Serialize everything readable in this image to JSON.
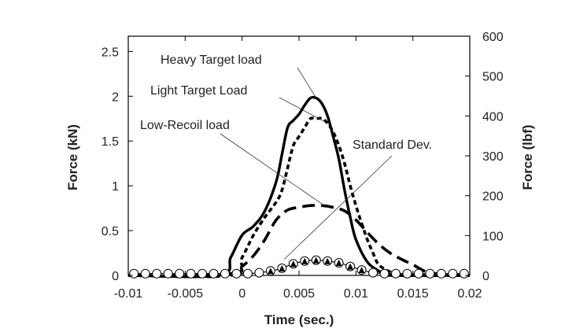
{
  "chart_data": {
    "type": "line",
    "xlabel": "Time (sec.)",
    "ylabel": "Force (kN)",
    "ylabel_right": "Force (lbf)",
    "xlim": [
      -0.01,
      0.02
    ],
    "ylim": [
      0,
      2.67
    ],
    "ylim_right": [
      0,
      600
    ],
    "x_ticks": [
      "-0.01",
      "-0.005",
      "0",
      "0.005",
      "0.01",
      "0.015",
      "0.02"
    ],
    "y_ticks": [
      "0",
      "0.5",
      "1",
      "1.5",
      "2",
      "2.5"
    ],
    "y_ticks_right": [
      "0",
      "100",
      "200",
      "300",
      "400",
      "500",
      "600"
    ],
    "grid": false,
    "annotations": [
      {
        "text": "Heavy Target load",
        "target_series": "heavy",
        "x": 0.0066,
        "y": 1.96
      },
      {
        "text": "Light Target Load",
        "target_series": "light",
        "x": 0.0072,
        "y": 1.72
      },
      {
        "text": "Low-Recoil load",
        "target_series": "low",
        "x": 0.0071,
        "y": 0.79
      },
      {
        "text": "Standard Dev.",
        "target_series": "std",
        "x": 0.0037,
        "y": 0.18
      }
    ],
    "series": [
      {
        "key": "heavy",
        "style": "solid",
        "color": "#000000",
        "x": [
          -0.01,
          -0.002,
          -0.001,
          0.0,
          0.001,
          0.002,
          0.003,
          0.0035,
          0.004,
          0.0045,
          0.005,
          0.0055,
          0.006,
          0.0065,
          0.007,
          0.0075,
          0.008,
          0.0085,
          0.009,
          0.0095,
          0.01,
          0.011,
          0.012,
          0.0125,
          0.013,
          0.02
        ],
        "y": [
          0,
          0,
          0.2,
          0.45,
          0.55,
          0.72,
          1.05,
          1.35,
          1.65,
          1.73,
          1.8,
          1.9,
          1.98,
          1.98,
          1.92,
          1.78,
          1.55,
          1.3,
          0.95,
          0.65,
          0.4,
          0.15,
          0.05,
          0.02,
          0,
          0
        ]
      },
      {
        "key": "light",
        "style": "dotted",
        "color": "#000000",
        "x": [
          -0.01,
          -0.001,
          0.0,
          0.001,
          0.002,
          0.003,
          0.0035,
          0.004,
          0.0045,
          0.005,
          0.0055,
          0.006,
          0.0065,
          0.007,
          0.0075,
          0.008,
          0.0085,
          0.009,
          0.0095,
          0.01,
          0.0105,
          0.011,
          0.0115,
          0.012,
          0.013,
          0.014,
          0.02
        ],
        "y": [
          0,
          0,
          0.2,
          0.45,
          0.65,
          0.82,
          0.95,
          1.2,
          1.45,
          1.55,
          1.65,
          1.75,
          1.75,
          1.75,
          1.7,
          1.6,
          1.45,
          1.25,
          1.0,
          0.78,
          0.58,
          0.4,
          0.25,
          0.12,
          0.04,
          0,
          0
        ]
      },
      {
        "key": "low",
        "style": "dashed",
        "color": "#000000",
        "x": [
          -0.01,
          -0.001,
          0.0,
          0.001,
          0.002,
          0.003,
          0.004,
          0.005,
          0.006,
          0.007,
          0.008,
          0.009,
          0.01,
          0.011,
          0.012,
          0.013,
          0.014,
          0.015,
          0.016,
          0.017,
          0.02
        ],
        "y": [
          0,
          0.02,
          0.1,
          0.22,
          0.4,
          0.62,
          0.73,
          0.76,
          0.78,
          0.78,
          0.76,
          0.72,
          0.62,
          0.48,
          0.35,
          0.25,
          0.18,
          0.12,
          0.05,
          0.02,
          0.0
        ]
      },
      {
        "key": "std",
        "style": "markers",
        "color": "#000000",
        "x": [
          -0.0095,
          -0.0085,
          -0.0075,
          -0.0065,
          -0.0055,
          -0.0045,
          -0.0035,
          -0.0025,
          -0.0015,
          -0.0005,
          0.0005,
          0.0015,
          0.0025,
          0.0035,
          0.0045,
          0.0055,
          0.0065,
          0.0075,
          0.0085,
          0.0095,
          0.0105,
          0.0115,
          0.0125,
          0.0135,
          0.0145,
          0.0155,
          0.0165,
          0.0175,
          0.0185,
          0.0195
        ],
        "y": [
          0.02,
          0.02,
          0.02,
          0.02,
          0.02,
          0.02,
          0.02,
          0.02,
          0.02,
          0.02,
          0.02,
          0.03,
          0.05,
          0.08,
          0.13,
          0.16,
          0.17,
          0.16,
          0.14,
          0.1,
          0.06,
          0.03,
          0.02,
          0.02,
          0.02,
          0.02,
          0.02,
          0.02,
          0.02,
          0.02
        ]
      }
    ]
  }
}
